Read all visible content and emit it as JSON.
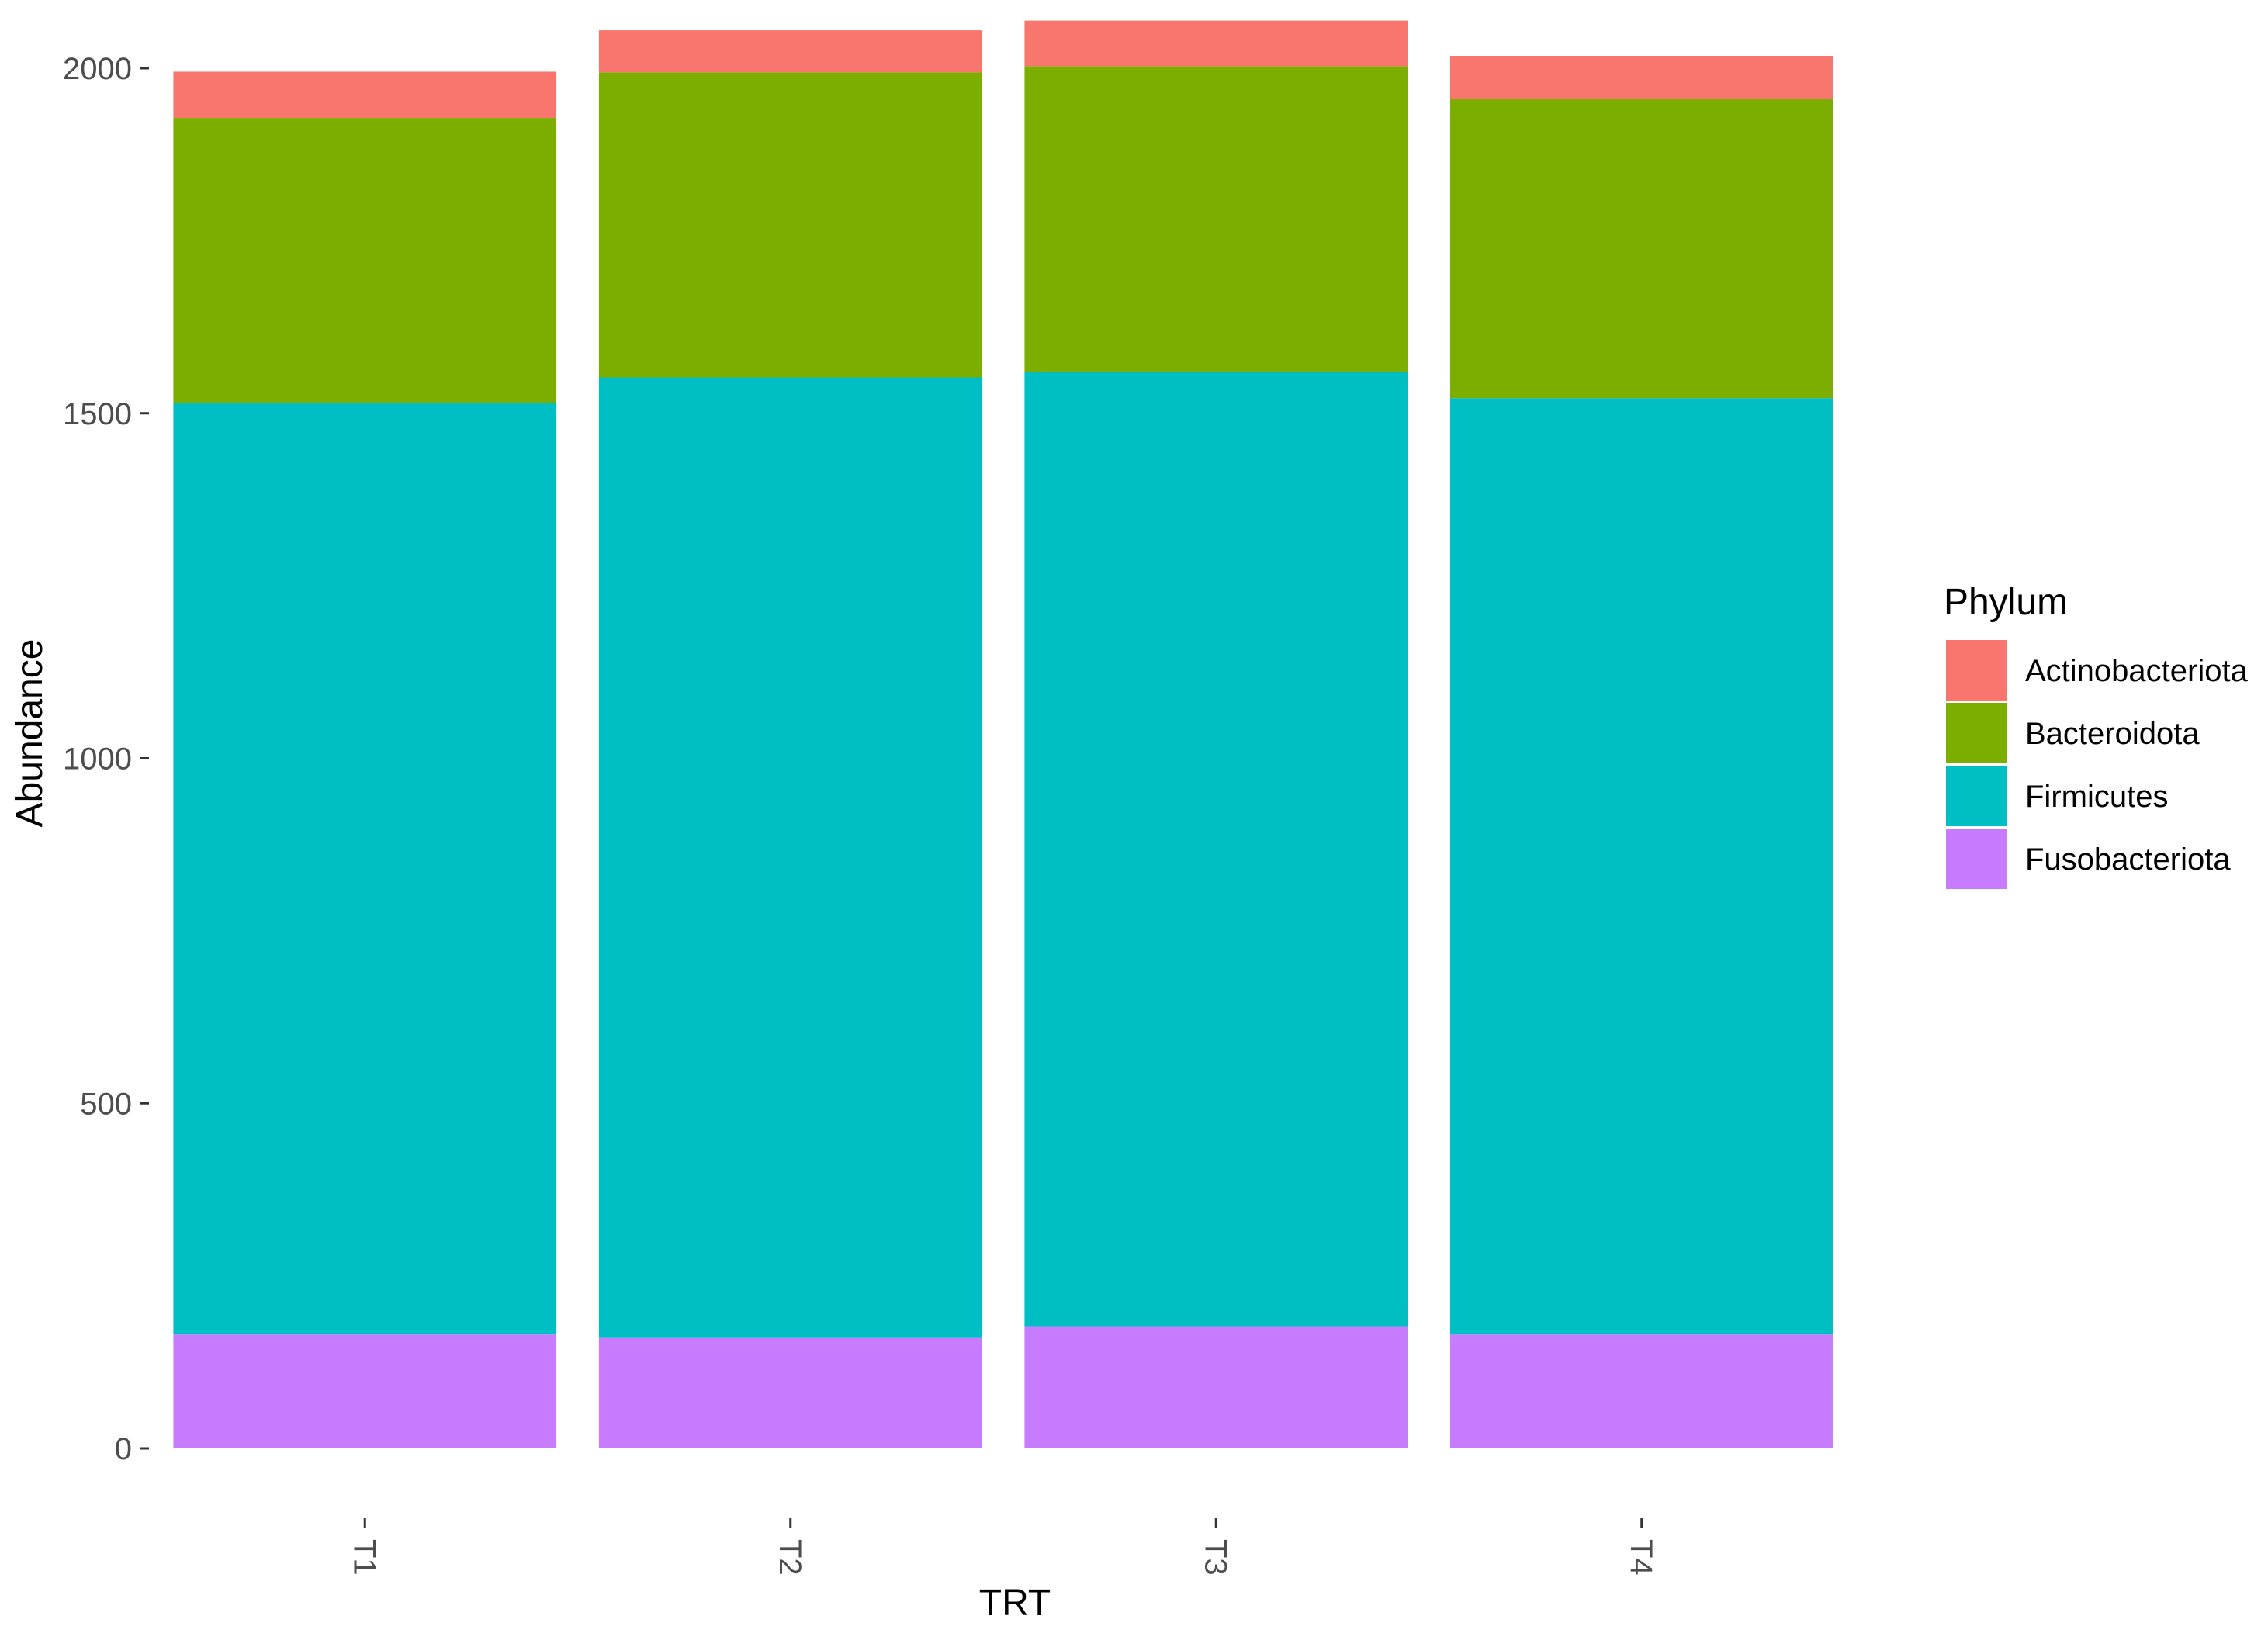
{
  "chart_data": {
    "type": "bar",
    "stacked": true,
    "categories": [
      "T1",
      "T2",
      "T3",
      "T4"
    ],
    "series": [
      {
        "name": "Fusobacteriota",
        "color": "#C77CFF",
        "values": [
          165,
          160,
          177,
          165
        ]
      },
      {
        "name": "Firmicutes",
        "color": "#00BFC4",
        "values": [
          1350,
          1392,
          1383,
          1357
        ]
      },
      {
        "name": "Bacteroidota",
        "color": "#7CAE00",
        "values": [
          413,
          442,
          443,
          433
        ]
      },
      {
        "name": "Actinobacteriota",
        "color": "#F8766D",
        "values": [
          67,
          61,
          66,
          63
        ]
      }
    ],
    "title": "",
    "xlabel": "TRT",
    "ylabel": "Abundance",
    "ylim": [
      0,
      2080
    ],
    "yticks": [
      0,
      500,
      1000,
      1500,
      2000
    ],
    "grid": false,
    "legend": {
      "title": "Phylum",
      "placement": "right",
      "order": [
        "Actinobacteriota",
        "Bacteroidota",
        "Firmicutes",
        "Fusobacteriota"
      ]
    }
  }
}
